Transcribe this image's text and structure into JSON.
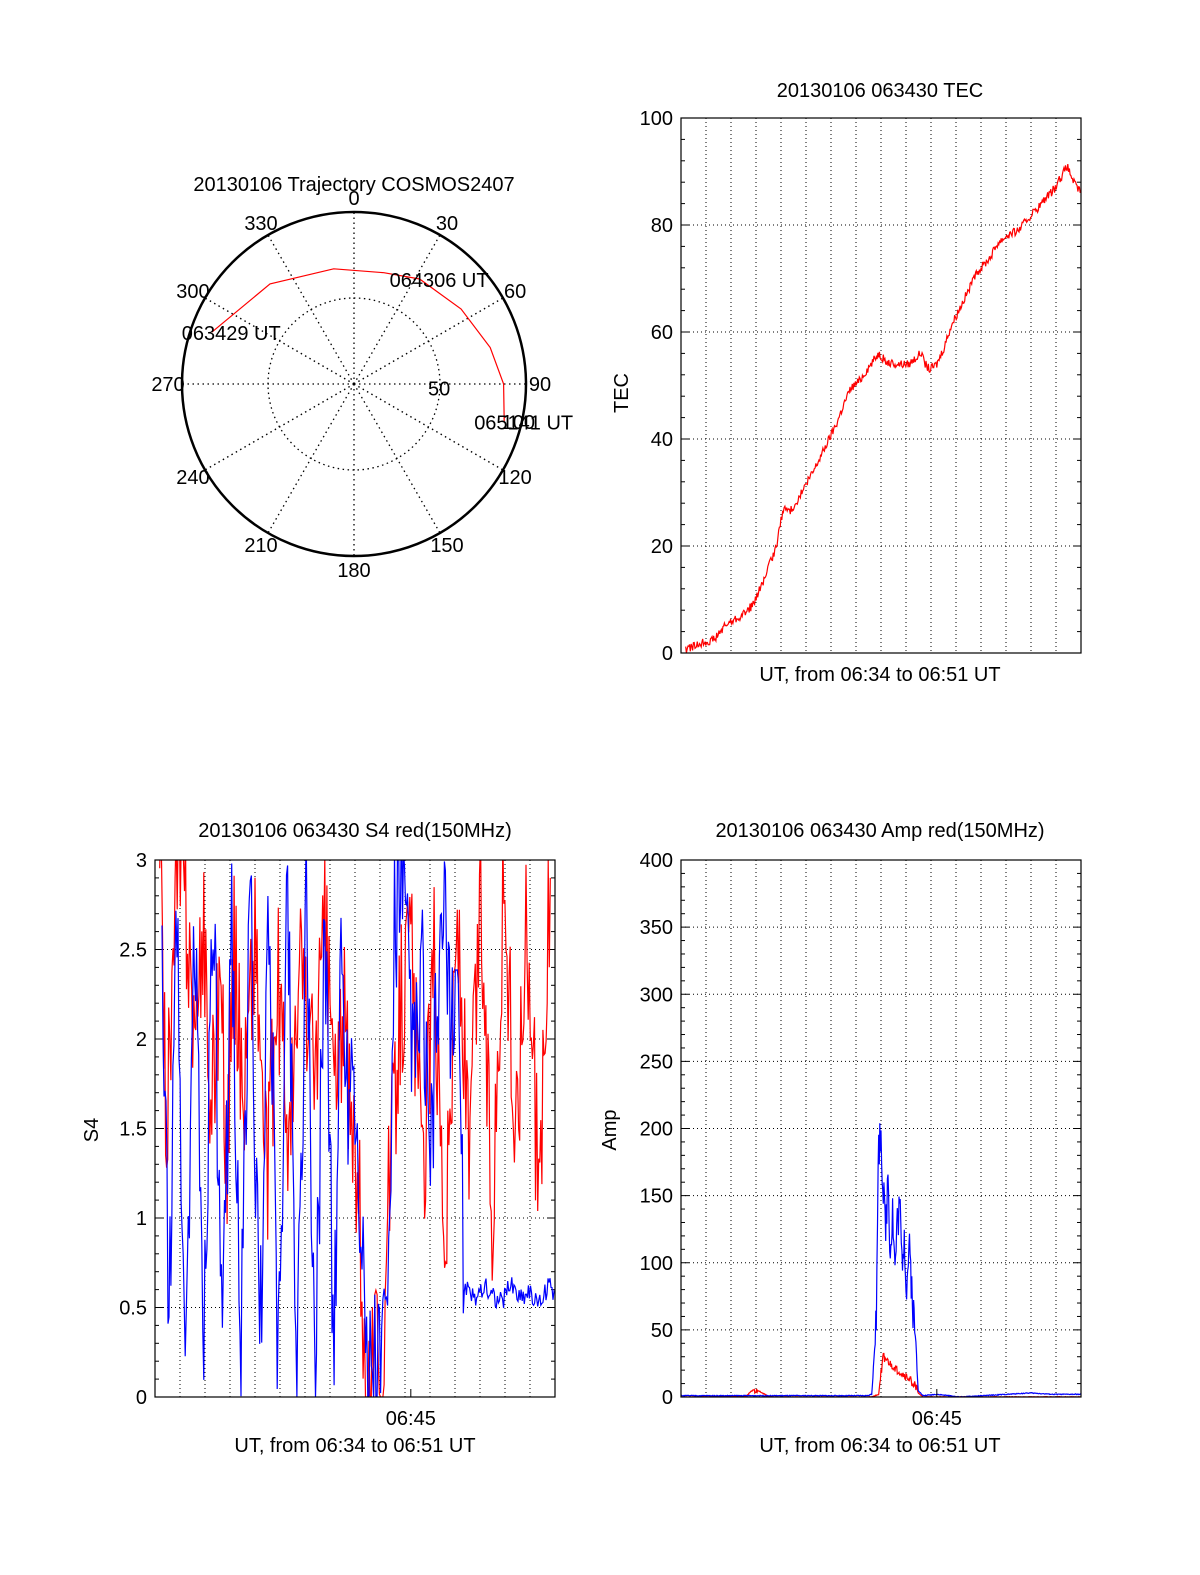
{
  "chart_data": [
    {
      "type": "polar",
      "title": "20130106 Trajectory COSMOS2407",
      "angle_labels": [
        "0",
        "30",
        "60",
        "90",
        "120",
        "150",
        "180",
        "210",
        "240",
        "270",
        "300",
        "330"
      ],
      "radial_labels": [
        "50",
        "100"
      ],
      "radial_range": [
        0,
        100
      ],
      "grid": true,
      "annotations": [
        {
          "text": "063429 UT",
          "az": -70,
          "r": 88
        },
        {
          "text": "064306 UT",
          "az": 32,
          "r": 72
        },
        {
          "text": "065141 UT",
          "az": 104,
          "r": 90
        }
      ],
      "trajectory": {
        "color": "#ff0000",
        "points": [
          [
            -70,
            88
          ],
          [
            -40,
            76
          ],
          [
            -10,
            68
          ],
          [
            15,
            67
          ],
          [
            32,
            72
          ],
          [
            55,
            76
          ],
          [
            75,
            82
          ],
          [
            90,
            87
          ],
          [
            104,
            90
          ]
        ]
      }
    },
    {
      "type": "line",
      "title": "20130106 063430 TEC",
      "xlabel": "UT, from 06:34 to 06:51 UT",
      "ylabel": "TEC",
      "ylim": [
        0,
        100
      ],
      "yticks": [
        "0",
        "20",
        "40",
        "60",
        "80",
        "100"
      ],
      "xlim": [
        0,
        17.2
      ],
      "grid": true,
      "series": [
        {
          "color": "#ff0000",
          "x": [
            0.2,
            0.9,
            1.4,
            2.0,
            2.6,
            3.1,
            3.6,
            4.1,
            4.4,
            4.7,
            5.2,
            5.7,
            6.2,
            6.7,
            7.0,
            7.3,
            7.7,
            8.0,
            8.5,
            8.8,
            9.0,
            9.2,
            9.4,
            9.8,
            10.3,
            10.5,
            10.7,
            11.0,
            11.3,
            11.6,
            12.1,
            12.5,
            12.8,
            13.3,
            13.6,
            14.0,
            14.5,
            14.9,
            15.3,
            15.7,
            16.1,
            16.6,
            17.0,
            17.2
          ],
          "y": [
            0.5,
            2,
            2.5,
            5.5,
            7,
            9,
            14,
            20,
            27,
            26.5,
            30,
            34,
            38.5,
            43,
            46.5,
            49.5,
            51,
            53,
            56,
            54.5,
            54,
            54,
            54,
            54,
            56,
            54,
            53,
            54,
            57,
            61,
            65.5,
            69,
            71.5,
            74,
            76.5,
            78,
            79,
            81,
            83,
            85,
            87,
            91,
            87,
            86.5
          ]
        }
      ]
    },
    {
      "type": "line",
      "title": "20130106 063430 S4 red(150MHz)",
      "xlabel": "UT, from 06:34 to 06:51 UT",
      "ylabel": "S4",
      "ylim": [
        0,
        3
      ],
      "yticks": [
        "0",
        "0.5",
        "1",
        "1.5",
        "2",
        "2.5",
        "3"
      ],
      "xlim": [
        0,
        17.2
      ],
      "xticks": [
        {
          "value": 11,
          "label": "06:45"
        }
      ],
      "grid": true,
      "series": [
        {
          "color": "#ff0000",
          "x": [
            0.2,
            0.5,
            1.0,
            1.4,
            1.8,
            2.1,
            2.4,
            2.8,
            3.1,
            3.4,
            3.8,
            4.3,
            4.8,
            5.3,
            5.8,
            6.3,
            6.8,
            7.3,
            7.8,
            8.1,
            8.4,
            8.6,
            8.8,
            9.0,
            9.2,
            9.4,
            9.6,
            9.8,
            10.0,
            10.5,
            11.0,
            11.5,
            12.0,
            12.5,
            13.0,
            13.5,
            14.0,
            14.5,
            15.0,
            15.5,
            16.0,
            16.5,
            17.0
          ],
          "y": [
            3,
            1.6,
            3,
            2.6,
            1.9,
            2.7,
            1.5,
            2.4,
            1.3,
            2.5,
            1.7,
            2.6,
            1.2,
            2.3,
            1.4,
            2.5,
            1.8,
            2.6,
            1.7,
            2.2,
            1.5,
            1.3,
            1.0,
            0.2,
            0.12,
            0.2,
            0.3,
            0.18,
            1.0,
            2.1,
            2.6,
            1.2,
            2.4,
            0.9,
            2.7,
            1.3,
            2.8,
            1.0,
            2.9,
            1.4,
            2.7,
            1.1,
            2.9
          ]
        },
        {
          "color": "#0000ff",
          "x": [
            0.3,
            0.6,
            0.9,
            1.3,
            1.7,
            2.1,
            2.5,
            2.9,
            3.3,
            3.7,
            4.1,
            4.5,
            4.9,
            5.3,
            5.7,
            6.1,
            6.5,
            6.9,
            7.3,
            7.7,
            8.0,
            8.3,
            8.5,
            8.7,
            8.9,
            9.1,
            9.3,
            9.5,
            9.7,
            9.9,
            10.1,
            10.3,
            10.6,
            10.9,
            11.2,
            11.5,
            11.8,
            12.1,
            12.4,
            12.7,
            13.0,
            13.3,
            13.7,
            14.1,
            14.5,
            14.9,
            15.3,
            15.7,
            16.1,
            16.5,
            16.9,
            17.2
          ],
          "y": [
            2.8,
            0.2,
            2.9,
            0.1,
            2.6,
            0.3,
            2.9,
            0.1,
            2.7,
            0.2,
            2.9,
            0.15,
            2.8,
            0.1,
            2.9,
            0.2,
            2.7,
            0.1,
            2.8,
            0.2,
            2.5,
            1.7,
            2.0,
            1.4,
            1.0,
            0.08,
            0.12,
            0.18,
            0.25,
            0.3,
            0.9,
            2.6,
            2.9,
            2.3,
            1.8,
            2.4,
            1.2,
            2.1,
            2.7,
            2.0,
            2.5,
            0.6,
            0.55,
            0.62,
            0.58,
            0.53,
            0.64,
            0.56,
            0.6,
            0.5,
            0.63,
            0.58
          ]
        }
      ]
    },
    {
      "type": "line",
      "title": "20130106 063430 Amp red(150MHz)",
      "xlabel": "UT, from 06:34 to 06:51 UT",
      "ylabel": "Amp",
      "ylim": [
        0,
        400
      ],
      "yticks": [
        "0",
        "50",
        "100",
        "150",
        "200",
        "250",
        "300",
        "350",
        "400"
      ],
      "xlim": [
        0,
        17.2
      ],
      "xticks": [
        {
          "value": 11,
          "label": "06:45"
        }
      ],
      "grid": true,
      "series": [
        {
          "color": "#ff0000",
          "x": [
            0,
            2.8,
            3.0,
            3.2,
            3.5,
            3.7,
            3.9,
            8.2,
            8.5,
            8.6,
            8.7,
            8.8,
            9.0,
            9.3,
            9.6,
            9.9,
            10.1,
            10.2,
            10.4,
            17.2
          ],
          "y": [
            0,
            0.5,
            4,
            6,
            3,
            1,
            0,
            0,
            2,
            18,
            30,
            28,
            24,
            20,
            16,
            12,
            8,
            3,
            0,
            0
          ]
        },
        {
          "color": "#0000ff",
          "x": [
            0,
            8.0,
            8.2,
            8.4,
            8.5,
            8.6,
            8.7,
            8.8,
            8.9,
            9.0,
            9.1,
            9.2,
            9.3,
            9.4,
            9.5,
            9.6,
            9.7,
            9.8,
            9.9,
            10.0,
            10.1,
            10.2,
            10.4,
            11.0,
            11.5,
            12.0,
            13.0,
            14.0,
            15.0,
            16.0,
            17.2
          ],
          "y": [
            1,
            1,
            2,
            60,
            185,
            200,
            150,
            120,
            170,
            110,
            140,
            95,
            130,
            145,
            100,
            125,
            80,
            110,
            90,
            60,
            40,
            5,
            1,
            2,
            1,
            0,
            1,
            2,
            3,
            2,
            2
          ]
        }
      ]
    }
  ]
}
